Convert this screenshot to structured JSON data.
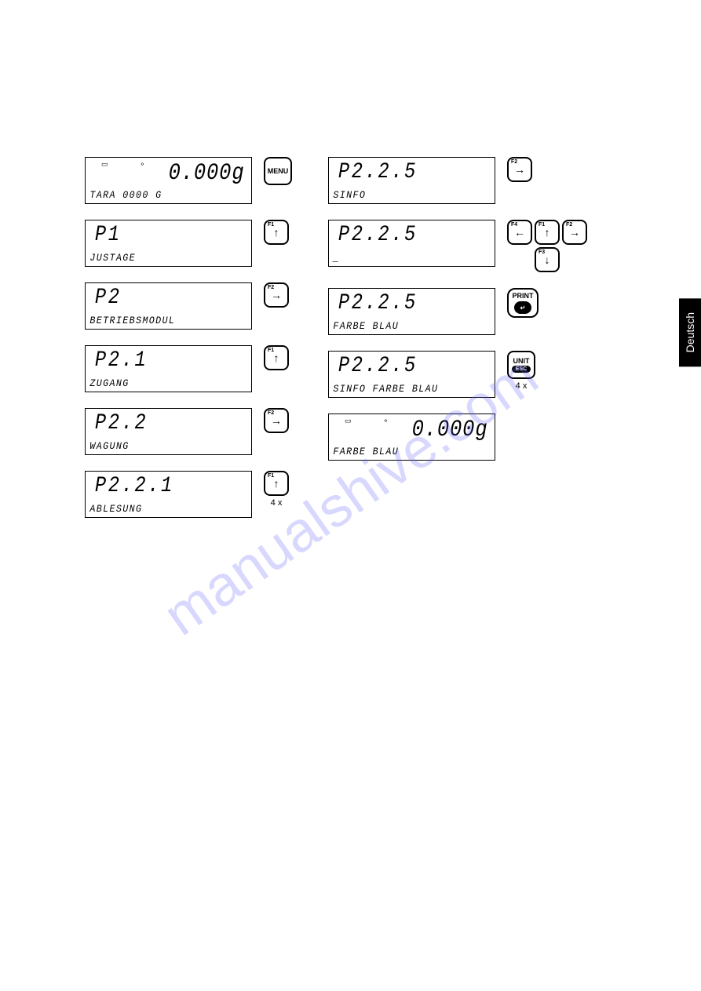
{
  "watermark": "manualshive.com",
  "lang_tab": "Deutsch",
  "left_col": [
    {
      "main": "0.000g",
      "main_align": "right",
      "sub": "TARA  0000   G",
      "has_icons": true,
      "btn": {
        "type": "menu",
        "label": "MENU"
      }
    },
    {
      "main": "P1",
      "sub": "JUSTAGE",
      "btn": {
        "type": "f",
        "f": "F1",
        "arrow": "↑"
      }
    },
    {
      "main": "P2",
      "sub": "BETRIEBSMODUL",
      "btn": {
        "type": "f",
        "f": "F2",
        "arrow": "→"
      }
    },
    {
      "main": "P2.1",
      "sub": "ZUGANG",
      "btn": {
        "type": "f",
        "f": "F1",
        "arrow": "↑"
      }
    },
    {
      "main": "P2.2",
      "sub": "WAGUNG",
      "btn": {
        "type": "f",
        "f": "F2",
        "arrow": "→"
      }
    },
    {
      "main": "P2.2.1",
      "sub": "ABLESUNG",
      "btn": {
        "type": "f",
        "f": "F1",
        "arrow": "↑",
        "caption": "4 x"
      }
    }
  ],
  "right_col": [
    {
      "main": "P2.2.5",
      "sub": "SINFO",
      "btn": {
        "type": "f",
        "f": "F2",
        "arrow": "→"
      }
    },
    {
      "main": "P2.2.5",
      "sub": "_",
      "btn": {
        "type": "nav4"
      }
    },
    {
      "main": "P2.2.5",
      "sub": "FARBE  BLAU",
      "btn": {
        "type": "print"
      }
    },
    {
      "main": "P2.2.5",
      "sub": "SINFO  FARBE  BLAU",
      "btn": {
        "type": "unit",
        "caption": "4 x"
      }
    },
    {
      "main": "0.000g",
      "main_align": "right",
      "sub": "FARBE  BLAU",
      "has_icons": true
    }
  ],
  "nav4": {
    "left": {
      "f": "F4",
      "arrow": "←"
    },
    "up": {
      "f": "F1",
      "arrow": "↑"
    },
    "down": {
      "f": "F3",
      "arrow": "↓"
    },
    "right": {
      "f": "F2",
      "arrow": "→"
    }
  },
  "print_btn": {
    "label": "PRINT",
    "symbol": "↵"
  },
  "unit_btn": {
    "label": "UNIT",
    "sub": "ESC"
  },
  "menu_btn": {
    "label": "MENU"
  }
}
